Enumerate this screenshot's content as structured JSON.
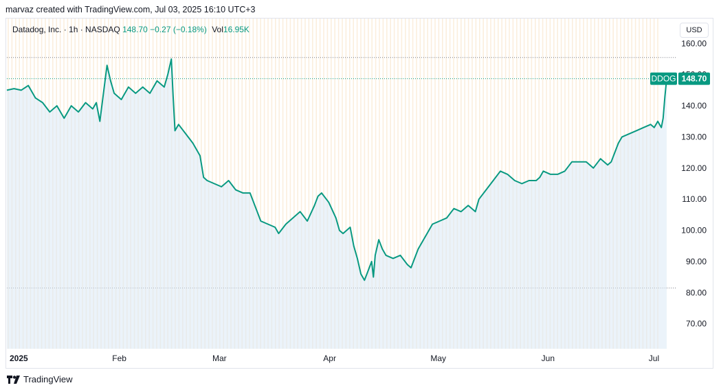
{
  "header": {
    "created_by": "marvaz created with TradingView.com, Jul 03, 2025 16:10 UTC+3"
  },
  "legend": {
    "symbol": "Datadog, Inc. · 1h · NASDAQ",
    "last": "148.70",
    "change": "−0.27 (−0.18%)",
    "vol_label": "Vol",
    "vol_value": "16.95K"
  },
  "currency": "USD",
  "footer": {
    "brand": "TradingView"
  },
  "colors": {
    "line": "#089981",
    "area": "#dbe9f5",
    "grid_stripe": "#fbeedd",
    "badge": "#089981"
  },
  "chart_data": {
    "type": "area",
    "ticker": "DDOG",
    "last_price": 148.7,
    "last_price_label": "148.70",
    "ylim": [
      62,
      168
    ],
    "yticks": [
      "160.00",
      "150.00",
      "140.00",
      "130.00",
      "120.00",
      "110.00",
      "100.00",
      "90.00",
      "80.00",
      "70.00"
    ],
    "ytick_values": [
      160,
      150,
      140,
      130,
      120,
      110,
      100,
      90,
      80,
      70
    ],
    "xticks": [
      {
        "label": "2025",
        "day": 0
      },
      {
        "label": "Feb",
        "day": 31
      },
      {
        "label": "Mar",
        "day": 59
      },
      {
        "label": "Apr",
        "day": 90
      },
      {
        "label": "May",
        "day": 120
      },
      {
        "label": "Jun",
        "day": 151
      },
      {
        "label": "Jul",
        "day": 181
      }
    ],
    "xlim": [
      0,
      187
    ],
    "dotted_levels": [
      155.5,
      81.5
    ],
    "series": [
      {
        "values": [
          [
            0,
            145
          ],
          [
            2,
            145.5
          ],
          [
            4,
            145
          ],
          [
            6,
            146.5
          ],
          [
            8,
            142.5
          ],
          [
            10,
            141
          ],
          [
            12,
            138
          ],
          [
            14,
            140
          ],
          [
            16,
            136
          ],
          [
            18,
            140
          ],
          [
            20,
            138
          ],
          [
            22,
            141
          ],
          [
            24,
            139
          ],
          [
            25,
            141
          ],
          [
            26,
            135
          ],
          [
            27,
            144
          ],
          [
            28,
            153
          ],
          [
            29,
            148
          ],
          [
            30,
            144
          ],
          [
            32,
            142
          ],
          [
            34,
            146
          ],
          [
            36,
            144
          ],
          [
            38,
            146
          ],
          [
            40,
            144
          ],
          [
            42,
            148
          ],
          [
            44,
            146
          ],
          [
            45,
            150
          ],
          [
            46,
            155
          ],
          [
            46.5,
            143
          ],
          [
            47,
            132
          ],
          [
            48,
            134
          ],
          [
            50,
            131
          ],
          [
            52,
            128
          ],
          [
            54,
            124
          ],
          [
            55,
            117
          ],
          [
            56,
            116
          ],
          [
            58,
            115
          ],
          [
            60,
            114
          ],
          [
            62,
            116
          ],
          [
            64,
            113
          ],
          [
            66,
            112
          ],
          [
            68,
            112
          ],
          [
            70,
            106
          ],
          [
            71,
            103
          ],
          [
            73,
            102
          ],
          [
            75,
            101
          ],
          [
            76,
            99
          ],
          [
            78,
            102
          ],
          [
            80,
            104
          ],
          [
            82,
            106
          ],
          [
            84,
            103
          ],
          [
            86,
            108
          ],
          [
            87,
            111
          ],
          [
            88,
            112
          ],
          [
            90,
            109
          ],
          [
            92,
            104
          ],
          [
            93,
            100
          ],
          [
            94,
            99
          ],
          [
            96,
            101
          ],
          [
            97,
            95
          ],
          [
            98,
            91
          ],
          [
            99,
            86
          ],
          [
            100,
            84
          ],
          [
            101,
            87
          ],
          [
            102,
            90
          ],
          [
            102.5,
            85
          ],
          [
            103,
            92
          ],
          [
            104,
            97
          ],
          [
            105,
            94
          ],
          [
            106,
            92
          ],
          [
            108,
            91
          ],
          [
            110,
            92
          ],
          [
            112,
            89
          ],
          [
            113,
            88
          ],
          [
            114,
            91
          ],
          [
            115,
            94
          ],
          [
            117,
            98
          ],
          [
            119,
            102
          ],
          [
            121,
            103
          ],
          [
            123,
            104
          ],
          [
            125,
            107
          ],
          [
            127,
            106
          ],
          [
            129,
            108
          ],
          [
            131,
            106
          ],
          [
            132,
            110
          ],
          [
            134,
            113
          ],
          [
            136,
            116
          ],
          [
            138,
            119
          ],
          [
            140,
            118
          ],
          [
            142,
            116
          ],
          [
            144,
            115
          ],
          [
            146,
            116
          ],
          [
            148,
            116
          ],
          [
            149,
            117
          ],
          [
            150,
            119
          ],
          [
            152,
            118
          ],
          [
            154,
            118
          ],
          [
            156,
            119
          ],
          [
            158,
            122
          ],
          [
            160,
            122
          ],
          [
            162,
            122
          ],
          [
            164,
            120
          ],
          [
            166,
            123
          ],
          [
            168,
            121
          ],
          [
            169,
            122
          ],
          [
            171,
            128
          ],
          [
            172,
            130
          ],
          [
            174,
            131
          ],
          [
            176,
            132
          ],
          [
            178,
            133
          ],
          [
            180,
            134
          ],
          [
            181,
            133
          ],
          [
            182,
            135
          ],
          [
            183,
            133
          ],
          [
            183.5,
            136
          ],
          [
            184,
            143
          ],
          [
            184.5,
            148.7
          ]
        ]
      }
    ]
  }
}
